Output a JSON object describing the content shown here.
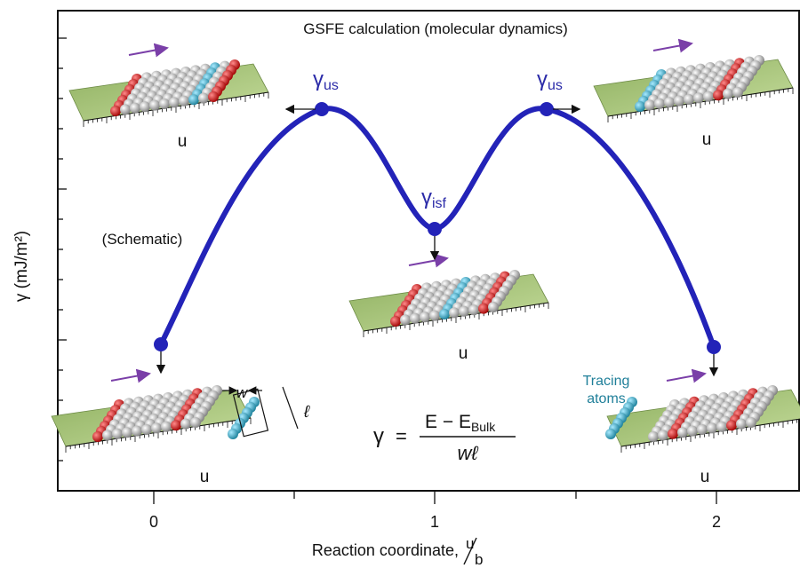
{
  "title": "GSFE calculation (molecular dynamics)",
  "y_label": "γ (mJ/m²)",
  "x_label": "Reaction coordinate,",
  "x_label_fraction": {
    "numerator": "u",
    "denominator": "b"
  },
  "x_tick_labels": [
    "0",
    "1",
    "2"
  ],
  "annotations": {
    "schematic": "(Schematic)",
    "tracing_atoms": [
      "Tracing",
      "atoms"
    ]
  },
  "states": [
    {
      "symbol": "γ",
      "subscript": "us"
    },
    {
      "symbol": "γ",
      "subscript": "isf"
    },
    {
      "symbol": "γ",
      "subscript": "us"
    }
  ],
  "slab_labels": [
    "u",
    "u",
    "u",
    "u",
    "u"
  ],
  "dimension_labels": {
    "width": "w",
    "length": "ℓ"
  },
  "formula": {
    "lhs": "γ",
    "equals": "=",
    "numerator": "E − E",
    "numerator_subscript": "Bulk",
    "denominator": "wℓ"
  }
}
